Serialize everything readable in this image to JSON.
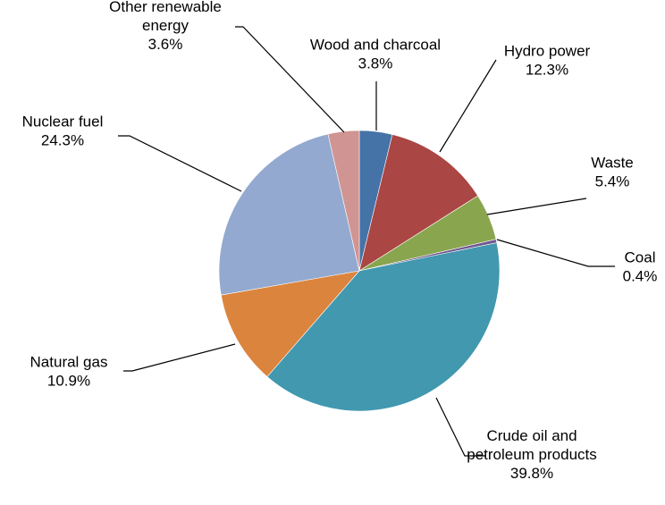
{
  "chart_data": {
    "type": "pie",
    "title": "",
    "slices": [
      {
        "name": "Wood and charcoal",
        "value": 3.8,
        "label": "3.8%",
        "color": "#4572A7"
      },
      {
        "name": "Hydro power",
        "value": 12.3,
        "label": "12.3%",
        "color": "#AA4643"
      },
      {
        "name": "Waste",
        "value": 5.4,
        "label": "5.4%",
        "color": "#89A54E"
      },
      {
        "name": "Coal",
        "value": 0.4,
        "label": "0.4%",
        "color": "#71588F"
      },
      {
        "name": "Crude oil and petroleum products",
        "name_lines": [
          "Crude oil and",
          "petroleum products"
        ],
        "value": 39.8,
        "label": "39.8%",
        "color": "#4198AF"
      },
      {
        "name": "Natural gas",
        "value": 10.9,
        "label": "10.9%",
        "color": "#DB843D"
      },
      {
        "name": "Nuclear fuel",
        "value": 24.3,
        "label": "24.3%",
        "color": "#93A9CF"
      },
      {
        "name": "Other renewable energy",
        "name_lines": [
          "Other renewable",
          "energy"
        ],
        "value": 3.6,
        "label": "3.6%",
        "color": "#D09493"
      }
    ],
    "start_position": "top",
    "direction": "clockwise",
    "legend": "none"
  }
}
